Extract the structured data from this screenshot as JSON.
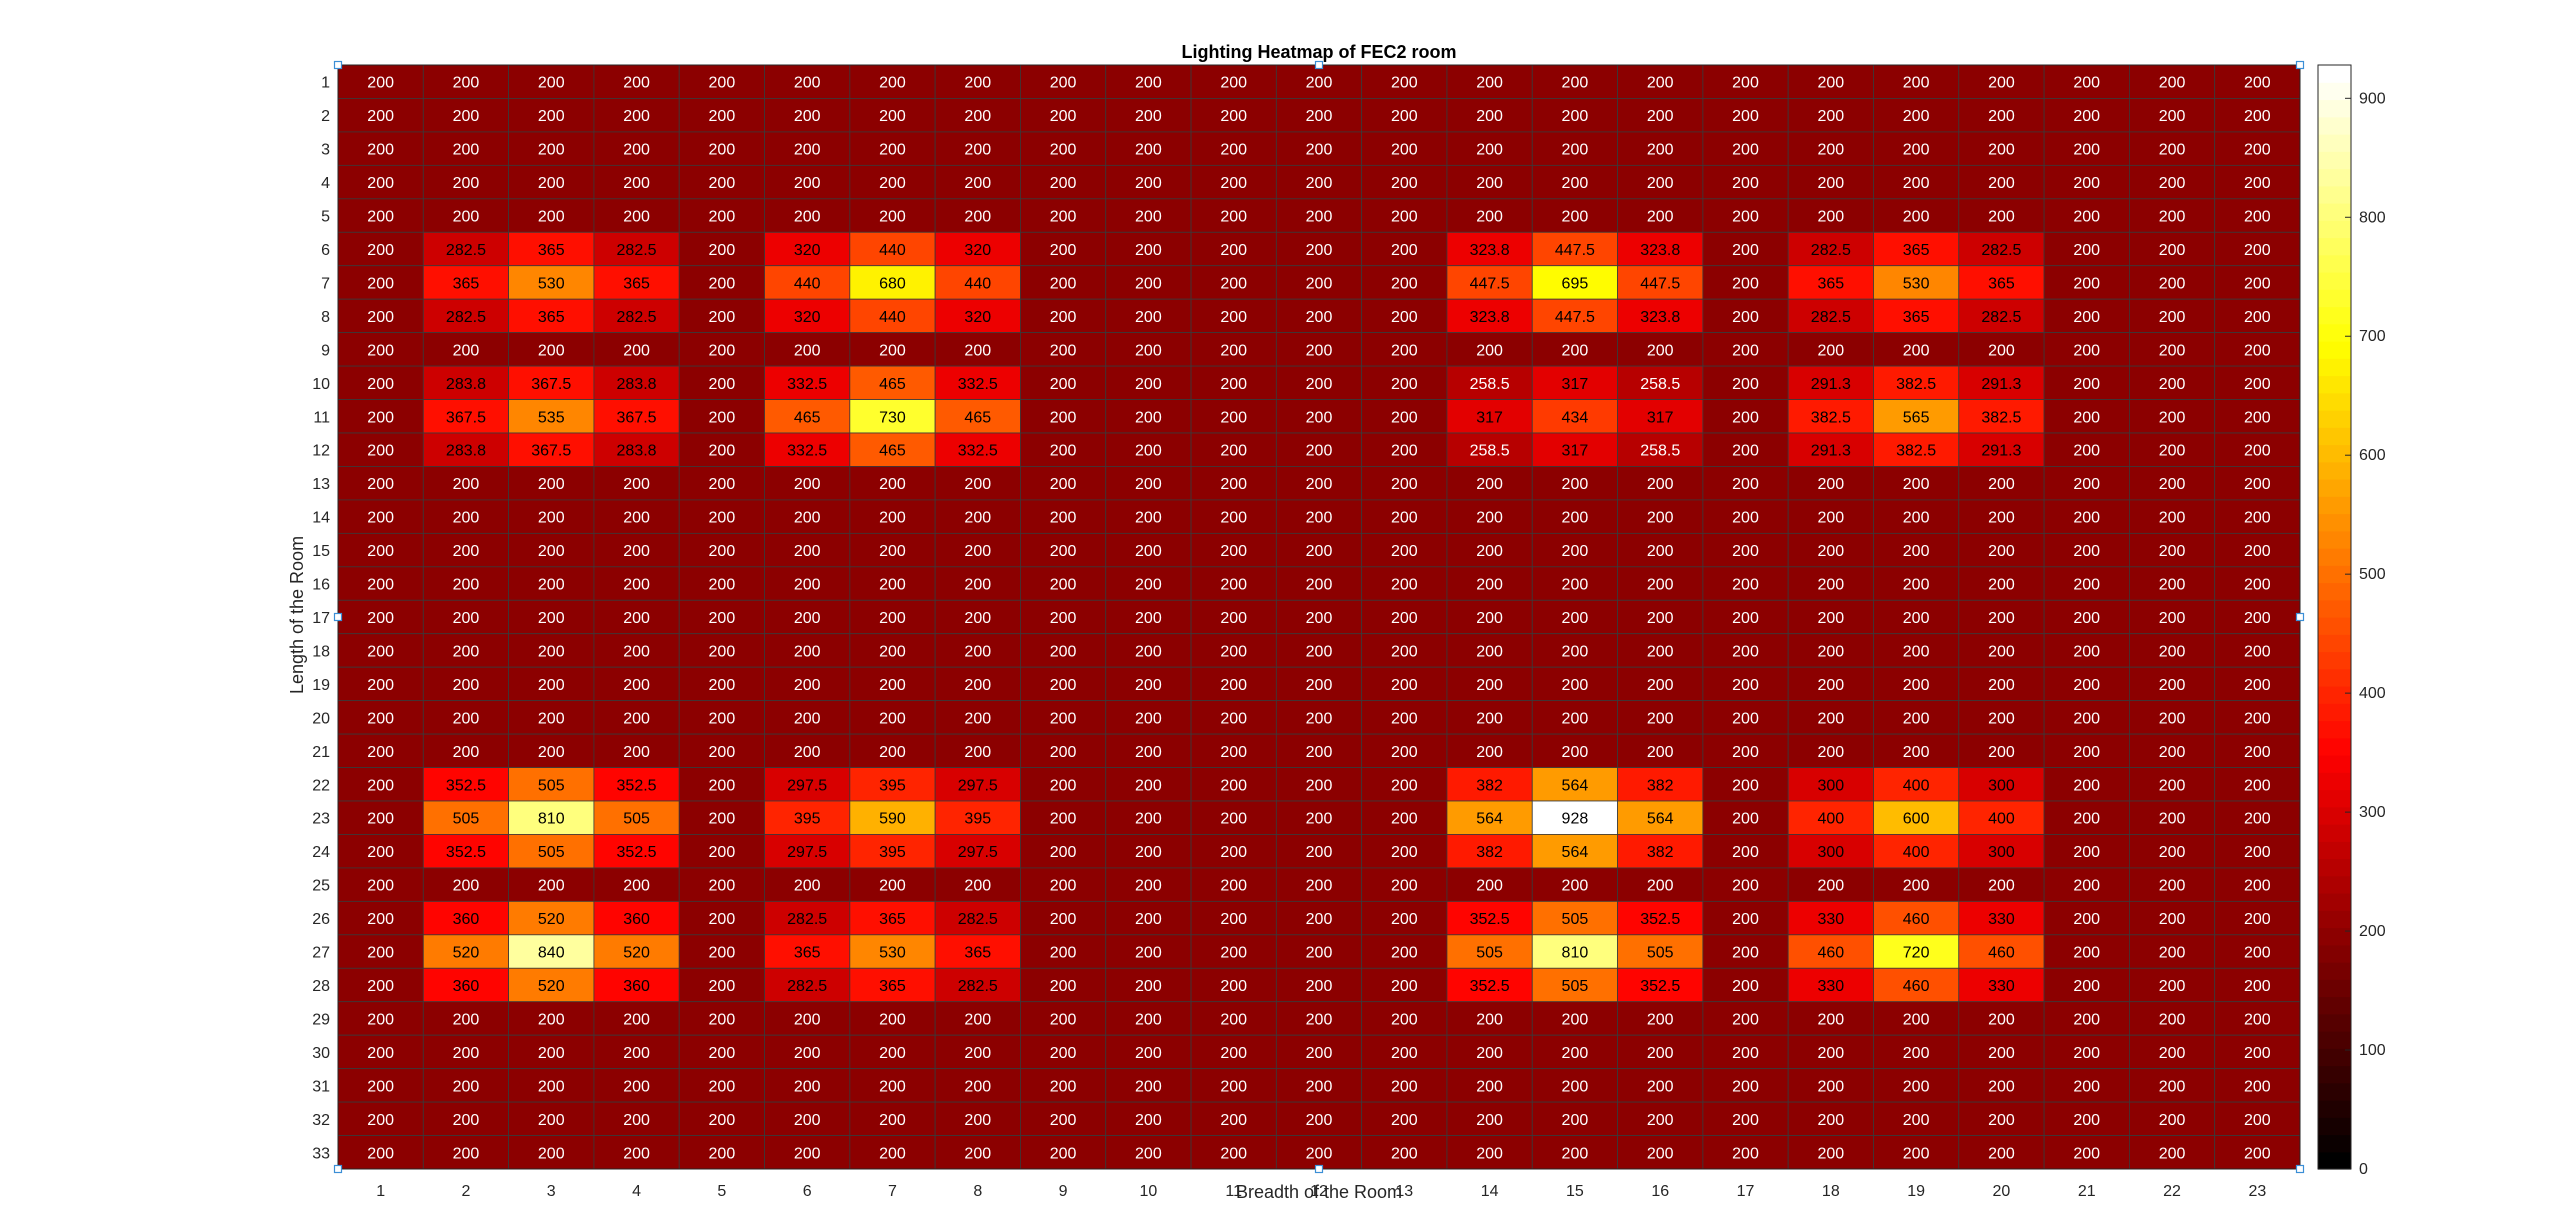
{
  "chart_data": {
    "type": "heatmap",
    "title": "Lighting Heatmap of FEC2 room",
    "xlabel": "Breadth of the Room",
    "ylabel": "Length of the Room",
    "x_categories": [
      "1",
      "2",
      "3",
      "4",
      "5",
      "6",
      "7",
      "8",
      "9",
      "10",
      "11",
      "12",
      "13",
      "14",
      "15",
      "16",
      "17",
      "18",
      "19",
      "20",
      "21",
      "22",
      "23"
    ],
    "y_categories": [
      "1",
      "2",
      "3",
      "4",
      "5",
      "6",
      "7",
      "8",
      "9",
      "10",
      "11",
      "12",
      "13",
      "14",
      "15",
      "16",
      "17",
      "18",
      "19",
      "20",
      "21",
      "22",
      "23",
      "24",
      "25",
      "26",
      "27",
      "28",
      "29",
      "30",
      "31",
      "32",
      "33"
    ],
    "colorbar": {
      "colormap": "hot",
      "range": [
        0,
        928
      ],
      "ticks": [
        "0",
        "100",
        "200",
        "300",
        "400",
        "500",
        "600",
        "700",
        "800",
        "900"
      ]
    },
    "values": [
      [
        200,
        200,
        200,
        200,
        200,
        200,
        200,
        200,
        200,
        200,
        200,
        200,
        200,
        200,
        200,
        200,
        200,
        200,
        200,
        200,
        200,
        200,
        200
      ],
      [
        200,
        200,
        200,
        200,
        200,
        200,
        200,
        200,
        200,
        200,
        200,
        200,
        200,
        200,
        200,
        200,
        200,
        200,
        200,
        200,
        200,
        200,
        200
      ],
      [
        200,
        200,
        200,
        200,
        200,
        200,
        200,
        200,
        200,
        200,
        200,
        200,
        200,
        200,
        200,
        200,
        200,
        200,
        200,
        200,
        200,
        200,
        200
      ],
      [
        200,
        200,
        200,
        200,
        200,
        200,
        200,
        200,
        200,
        200,
        200,
        200,
        200,
        200,
        200,
        200,
        200,
        200,
        200,
        200,
        200,
        200,
        200
      ],
      [
        200,
        200,
        200,
        200,
        200,
        200,
        200,
        200,
        200,
        200,
        200,
        200,
        200,
        200,
        200,
        200,
        200,
        200,
        200,
        200,
        200,
        200,
        200
      ],
      [
        200,
        282.5,
        365,
        282.5,
        200,
        320,
        440,
        320,
        200,
        200,
        200,
        200,
        200,
        323.8,
        447.5,
        323.8,
        200,
        282.5,
        365,
        282.5,
        200,
        200,
        200
      ],
      [
        200,
        365,
        530,
        365,
        200,
        440,
        680,
        440,
        200,
        200,
        200,
        200,
        200,
        447.5,
        695,
        447.5,
        200,
        365,
        530,
        365,
        200,
        200,
        200
      ],
      [
        200,
        282.5,
        365,
        282.5,
        200,
        320,
        440,
        320,
        200,
        200,
        200,
        200,
        200,
        323.8,
        447.5,
        323.8,
        200,
        282.5,
        365,
        282.5,
        200,
        200,
        200
      ],
      [
        200,
        200,
        200,
        200,
        200,
        200,
        200,
        200,
        200,
        200,
        200,
        200,
        200,
        200,
        200,
        200,
        200,
        200,
        200,
        200,
        200,
        200,
        200
      ],
      [
        200,
        283.8,
        367.5,
        283.8,
        200,
        332.5,
        465,
        332.5,
        200,
        200,
        200,
        200,
        200,
        258.5,
        317,
        258.5,
        200,
        291.3,
        382.5,
        291.3,
        200,
        200,
        200
      ],
      [
        200,
        367.5,
        535,
        367.5,
        200,
        465,
        730,
        465,
        200,
        200,
        200,
        200,
        200,
        317,
        434,
        317,
        200,
        382.5,
        565,
        382.5,
        200,
        200,
        200
      ],
      [
        200,
        283.8,
        367.5,
        283.8,
        200,
        332.5,
        465,
        332.5,
        200,
        200,
        200,
        200,
        200,
        258.5,
        317,
        258.5,
        200,
        291.3,
        382.5,
        291.3,
        200,
        200,
        200
      ],
      [
        200,
        200,
        200,
        200,
        200,
        200,
        200,
        200,
        200,
        200,
        200,
        200,
        200,
        200,
        200,
        200,
        200,
        200,
        200,
        200,
        200,
        200,
        200
      ],
      [
        200,
        200,
        200,
        200,
        200,
        200,
        200,
        200,
        200,
        200,
        200,
        200,
        200,
        200,
        200,
        200,
        200,
        200,
        200,
        200,
        200,
        200,
        200
      ],
      [
        200,
        200,
        200,
        200,
        200,
        200,
        200,
        200,
        200,
        200,
        200,
        200,
        200,
        200,
        200,
        200,
        200,
        200,
        200,
        200,
        200,
        200,
        200
      ],
      [
        200,
        200,
        200,
        200,
        200,
        200,
        200,
        200,
        200,
        200,
        200,
        200,
        200,
        200,
        200,
        200,
        200,
        200,
        200,
        200,
        200,
        200,
        200
      ],
      [
        200,
        200,
        200,
        200,
        200,
        200,
        200,
        200,
        200,
        200,
        200,
        200,
        200,
        200,
        200,
        200,
        200,
        200,
        200,
        200,
        200,
        200,
        200
      ],
      [
        200,
        200,
        200,
        200,
        200,
        200,
        200,
        200,
        200,
        200,
        200,
        200,
        200,
        200,
        200,
        200,
        200,
        200,
        200,
        200,
        200,
        200,
        200
      ],
      [
        200,
        200,
        200,
        200,
        200,
        200,
        200,
        200,
        200,
        200,
        200,
        200,
        200,
        200,
        200,
        200,
        200,
        200,
        200,
        200,
        200,
        200,
        200
      ],
      [
        200,
        200,
        200,
        200,
        200,
        200,
        200,
        200,
        200,
        200,
        200,
        200,
        200,
        200,
        200,
        200,
        200,
        200,
        200,
        200,
        200,
        200,
        200
      ],
      [
        200,
        200,
        200,
        200,
        200,
        200,
        200,
        200,
        200,
        200,
        200,
        200,
        200,
        200,
        200,
        200,
        200,
        200,
        200,
        200,
        200,
        200,
        200
      ],
      [
        200,
        352.5,
        505,
        352.5,
        200,
        297.5,
        395,
        297.5,
        200,
        200,
        200,
        200,
        200,
        382,
        564,
        382,
        200,
        300,
        400,
        300,
        200,
        200,
        200
      ],
      [
        200,
        505,
        810,
        505,
        200,
        395,
        590,
        395,
        200,
        200,
        200,
        200,
        200,
        564,
        928,
        564,
        200,
        400,
        600,
        400,
        200,
        200,
        200
      ],
      [
        200,
        352.5,
        505,
        352.5,
        200,
        297.5,
        395,
        297.5,
        200,
        200,
        200,
        200,
        200,
        382,
        564,
        382,
        200,
        300,
        400,
        300,
        200,
        200,
        200
      ],
      [
        200,
        200,
        200,
        200,
        200,
        200,
        200,
        200,
        200,
        200,
        200,
        200,
        200,
        200,
        200,
        200,
        200,
        200,
        200,
        200,
        200,
        200,
        200
      ],
      [
        200,
        360,
        520,
        360,
        200,
        282.5,
        365,
        282.5,
        200,
        200,
        200,
        200,
        200,
        352.5,
        505,
        352.5,
        200,
        330,
        460,
        330,
        200,
        200,
        200
      ],
      [
        200,
        520,
        840,
        520,
        200,
        365,
        530,
        365,
        200,
        200,
        200,
        200,
        200,
        505,
        810,
        505,
        200,
        460,
        720,
        460,
        200,
        200,
        200
      ],
      [
        200,
        360,
        520,
        360,
        200,
        282.5,
        365,
        282.5,
        200,
        200,
        200,
        200,
        200,
        352.5,
        505,
        352.5,
        200,
        330,
        460,
        330,
        200,
        200,
        200
      ],
      [
        200,
        200,
        200,
        200,
        200,
        200,
        200,
        200,
        200,
        200,
        200,
        200,
        200,
        200,
        200,
        200,
        200,
        200,
        200,
        200,
        200,
        200,
        200
      ],
      [
        200,
        200,
        200,
        200,
        200,
        200,
        200,
        200,
        200,
        200,
        200,
        200,
        200,
        200,
        200,
        200,
        200,
        200,
        200,
        200,
        200,
        200,
        200
      ],
      [
        200,
        200,
        200,
        200,
        200,
        200,
        200,
        200,
        200,
        200,
        200,
        200,
        200,
        200,
        200,
        200,
        200,
        200,
        200,
        200,
        200,
        200,
        200
      ],
      [
        200,
        200,
        200,
        200,
        200,
        200,
        200,
        200,
        200,
        200,
        200,
        200,
        200,
        200,
        200,
        200,
        200,
        200,
        200,
        200,
        200,
        200,
        200
      ],
      [
        200,
        200,
        200,
        200,
        200,
        200,
        200,
        200,
        200,
        200,
        200,
        200,
        200,
        200,
        200,
        200,
        200,
        200,
        200,
        200,
        200,
        200,
        200
      ]
    ]
  }
}
